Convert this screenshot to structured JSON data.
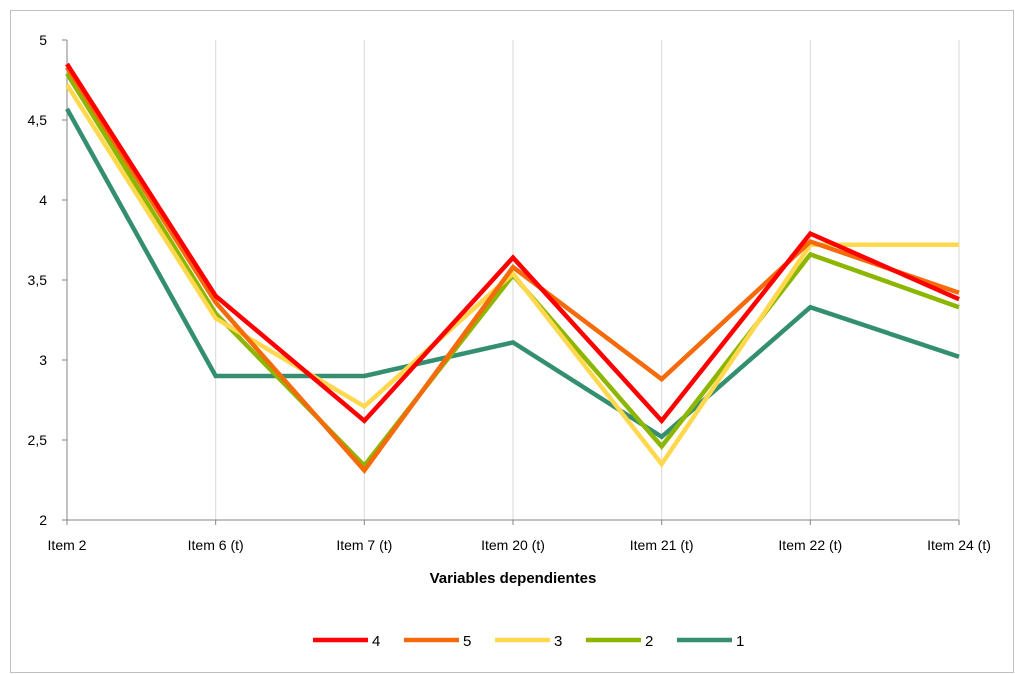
{
  "chart_data": {
    "type": "line",
    "title": "",
    "xlabel": "Variables dependientes",
    "ylabel": "",
    "categories": [
      "Item 2",
      "Item 6 (t)",
      "Item 7 (t)",
      "Item 20 (t)",
      "Item 21 (t)",
      "Item 22 (t)",
      "Item 24 (t)"
    ],
    "ylim": [
      2,
      5
    ],
    "yticks": [
      "2",
      "2,5",
      "3",
      "3,5",
      "4",
      "4,5",
      "5"
    ],
    "ytick_values": [
      2,
      2.5,
      3,
      3.5,
      4,
      4.5,
      5
    ],
    "grid": "vertical",
    "legend_position": "bottom",
    "series": [
      {
        "name": "4",
        "color": "#ff0000",
        "values": [
          4.85,
          3.4,
          2.62,
          3.64,
          2.62,
          3.79,
          3.38
        ]
      },
      {
        "name": "5",
        "color": "#f56a0a",
        "values": [
          4.83,
          3.36,
          2.31,
          3.58,
          2.88,
          3.74,
          3.42
        ]
      },
      {
        "name": "3",
        "color": "#ffd84d",
        "values": [
          4.72,
          3.26,
          2.71,
          3.54,
          2.35,
          3.72,
          3.72
        ]
      },
      {
        "name": "2",
        "color": "#8db600",
        "values": [
          4.79,
          3.29,
          2.34,
          3.53,
          2.46,
          3.66,
          3.33
        ]
      },
      {
        "name": "1",
        "color": "#338f70",
        "values": [
          4.57,
          2.9,
          2.9,
          3.11,
          2.52,
          3.33,
          3.02
        ]
      }
    ]
  }
}
